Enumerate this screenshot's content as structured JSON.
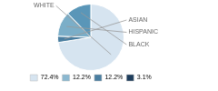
{
  "chart_data": {
    "type": "pie",
    "categories": [
      "WHITE",
      "ASIAN",
      "HISPANIC",
      "BLACK"
    ],
    "values": [
      72.4,
      3.1,
      12.2,
      12.2
    ],
    "colors": [
      "#d6e4f0",
      "#4a7ea0",
      "#7baec8",
      "#5a96b8"
    ],
    "legend": "bottom",
    "legend_entries": [
      {
        "value": 72.4,
        "label": "72.4%",
        "color": "#d6e4f0"
      },
      {
        "value": 12.2,
        "label": "12.2%",
        "color": "#8bb8d0"
      },
      {
        "value": 12.2,
        "label": "12.2%",
        "color": "#4a7ea0"
      },
      {
        "value": 3.1,
        "label": "3.1%",
        "color": "#1e3d5c"
      }
    ]
  }
}
